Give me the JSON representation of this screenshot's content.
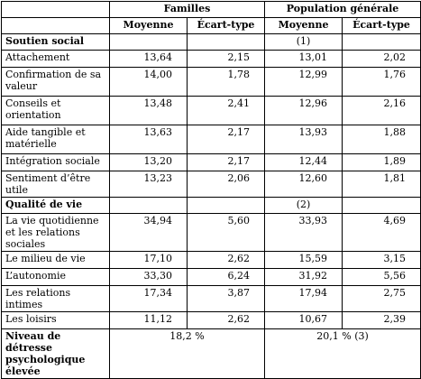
{
  "header": {
    "group1": "Familles",
    "group2": "Population générale",
    "col_mean": "Moyenne",
    "col_sd": "Écart-type"
  },
  "social": {
    "title": "Soutien social",
    "note": "(1)",
    "rows": [
      {
        "label": "Attachement",
        "f_mean": "13,64",
        "f_sd": "2,15",
        "p_mean": "13,01",
        "p_sd": "2,02"
      },
      {
        "label": "Confirmation de sa valeur",
        "f_mean": "14,00",
        "f_sd": "1,78",
        "p_mean": "12,99",
        "p_sd": "1,76"
      },
      {
        "label": "Conseils et orientation",
        "f_mean": "13,48",
        "f_sd": "2,41",
        "p_mean": "12,96",
        "p_sd": "2,16"
      },
      {
        "label": "Aide tangible et matérielle",
        "f_mean": "13,63",
        "f_sd": "2,17",
        "p_mean": "13,93",
        "p_sd": "1,88"
      },
      {
        "label": "Intégration sociale",
        "f_mean": "13,20",
        "f_sd": "2,17",
        "p_mean": "12,44",
        "p_sd": "1,89"
      },
      {
        "label": "Sentiment d’être utile",
        "f_mean": "13,23",
        "f_sd": "2,06",
        "p_mean": "12,60",
        "p_sd": "1,81"
      }
    ]
  },
  "quality": {
    "title": "Qualité de vie",
    "note": "(2)",
    "rows": [
      {
        "label": "La vie quotidienne et les relations sociales",
        "f_mean": "34,94",
        "f_sd": "5,60",
        "p_mean": "33,93",
        "p_sd": "4,69"
      },
      {
        "label": "Le milieu de vie",
        "f_mean": "17,10",
        "f_sd": "2,62",
        "p_mean": "15,59",
        "p_sd": "3,15"
      },
      {
        "label": "L’autonomie",
        "f_mean": "33,30",
        "f_sd": "6,24",
        "p_mean": "31,92",
        "p_sd": "5,56"
      },
      {
        "label": "Les relations intimes",
        "f_mean": "17,34",
        "f_sd": "3,87",
        "p_mean": "17,94",
        "p_sd": "2,75"
      },
      {
        "label": "Les loisirs",
        "f_mean": "11,12",
        "f_sd": "2,62",
        "p_mean": "10,67",
        "p_sd": "2,39"
      }
    ]
  },
  "distress": {
    "label": "Niveau de détresse psychologique élevée",
    "families": "18,2 %",
    "population": "20,1 % (3)"
  }
}
